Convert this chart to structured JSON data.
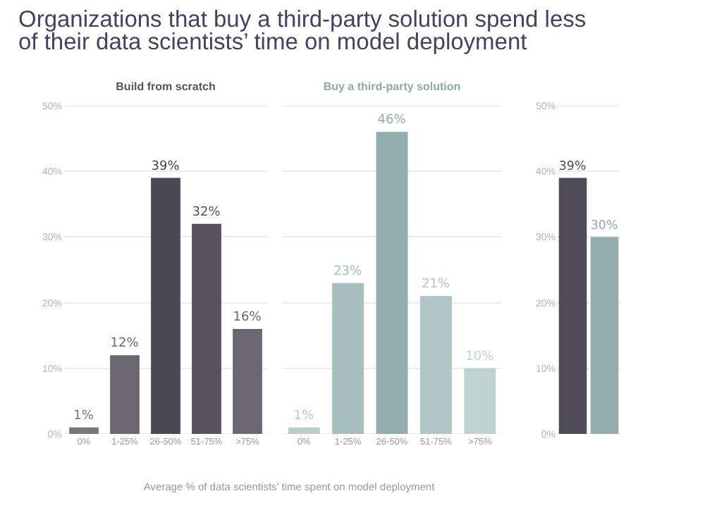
{
  "chart_data": [
    {
      "type": "bar",
      "title": "Organizations that buy a third-party solution spend less of their data scientists’ time on model deployment",
      "subtitle": "Build from scratch",
      "xlabel": "Average % of data scientists’ time spent on model deployment",
      "categories": [
        "0%",
        "1-25%",
        "26-50%",
        "51-75%",
        ">75%"
      ],
      "values": [
        1,
        12,
        39,
        32,
        16
      ],
      "value_labels": [
        "1%",
        "12%",
        "39%",
        "32%",
        "16%"
      ],
      "colors": [
        "#7b7580",
        "#6c6671",
        "#4b4753",
        "#57525e",
        "#6c6671"
      ],
      "ylim": [
        0,
        50
      ],
      "yticks": [
        {
          "value": 0,
          "label": "0%"
        },
        {
          "value": 10,
          "label": "10%"
        },
        {
          "value": 20,
          "label": "20%"
        },
        {
          "value": 30,
          "label": "30%"
        },
        {
          "value": 40,
          "label": "40%"
        },
        {
          "value": 50,
          "label": "50%"
        }
      ],
      "grid": "y"
    },
    {
      "type": "bar",
      "subtitle": "Buy a third-party solution",
      "categories": [
        "0%",
        "1-25%",
        "26-50%",
        "51-75%",
        ">75%"
      ],
      "values": [
        1,
        23,
        46,
        21,
        10
      ],
      "value_labels": [
        "1%",
        "23%",
        "46%",
        "21%",
        "10%"
      ],
      "colors": [
        "#b9cdcd",
        "#a7bebf",
        "#93acad",
        "#afc5c6",
        "#bfd2d2"
      ],
      "ylim": [
        0,
        50
      ],
      "yticks": [
        {
          "value": 0,
          "label": null
        },
        {
          "value": 10,
          "label": null
        },
        {
          "value": 20,
          "label": null
        },
        {
          "value": 30,
          "label": null
        },
        {
          "value": 40,
          "label": null
        },
        {
          "value": 50,
          "label": null
        }
      ],
      "grid": "y"
    },
    {
      "type": "bar",
      "categories": [
        null,
        null
      ],
      "values": [
        39,
        30
      ],
      "value_labels": [
        "39%",
        "30%"
      ],
      "colors": [
        "#4f4b58",
        "#93acad"
      ],
      "ylim": [
        0,
        50
      ],
      "yticks": [
        {
          "value": 0,
          "label": "0%"
        },
        {
          "value": 10,
          "label": "10%"
        },
        {
          "value": 20,
          "label": "20%"
        },
        {
          "value": 30,
          "label": "30%"
        },
        {
          "value": 40,
          "label": "40%"
        },
        {
          "value": 50,
          "label": "50%"
        }
      ],
      "grid": "y",
      "tick_labels": "y"
    }
  ]
}
